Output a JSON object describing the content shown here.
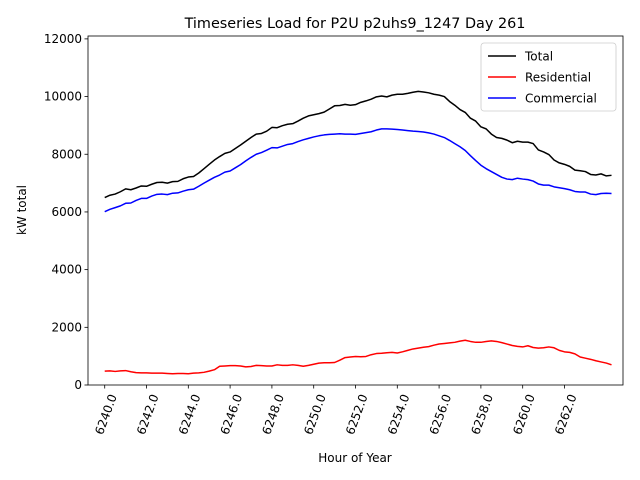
{
  "chart_data": {
    "type": "line",
    "title": "Timeseries Load for P2U p2uhs9_1247  Day 261",
    "xlabel": "Hour of Year",
    "ylabel": "kW total",
    "xlim": [
      6239.2,
      6264.8
    ],
    "ylim": [
      0,
      12100
    ],
    "xticks": [
      "6240.0",
      "6242.0",
      "6244.0",
      "6246.0",
      "6248.0",
      "6250.0",
      "6252.0",
      "6254.0",
      "6256.0",
      "6258.0",
      "6260.0",
      "6262.0"
    ],
    "xtick_values": [
      6240,
      6242,
      6244,
      6246,
      6248,
      6250,
      6252,
      6254,
      6256,
      6258,
      6260,
      6262
    ],
    "xtick_rotation": 70,
    "yticks": [
      "0",
      "2000",
      "4000",
      "6000",
      "8000",
      "10000",
      "12000"
    ],
    "ytick_values": [
      0,
      2000,
      4000,
      6000,
      8000,
      10000,
      12000
    ],
    "legend_position": "top-right",
    "grid": false,
    "x_start": 6240,
    "x_step": 0.25,
    "series": [
      {
        "name": "Total",
        "color": "#000000",
        "values": [
          6500,
          6580,
          6620,
          6700,
          6800,
          6770,
          6830,
          6900,
          6890,
          6960,
          7020,
          7030,
          7000,
          7050,
          7060,
          7150,
          7210,
          7230,
          7350,
          7500,
          7650,
          7800,
          7920,
          8030,
          8080,
          8200,
          8320,
          8450,
          8580,
          8700,
          8720,
          8800,
          8930,
          8920,
          8990,
          9040,
          9060,
          9150,
          9250,
          9330,
          9370,
          9410,
          9460,
          9570,
          9680,
          9690,
          9730,
          9700,
          9720,
          9800,
          9850,
          9910,
          9990,
          10020,
          9990,
          10050,
          10080,
          10080,
          10110,
          10150,
          10180,
          10160,
          10130,
          10080,
          10050,
          10000,
          9830,
          9700,
          9550,
          9450,
          9250,
          9150,
          8950,
          8880,
          8700,
          8580,
          8550,
          8490,
          8400,
          8450,
          8420,
          8420,
          8370,
          8150,
          8080,
          7990,
          7800,
          7700,
          7650,
          7580,
          7450,
          7430,
          7400,
          7300,
          7280,
          7320,
          7250,
          7270
        ]
      },
      {
        "name": "Residential",
        "color": "#ff0000",
        "values": [
          480,
          490,
          470,
          490,
          500,
          460,
          430,
          420,
          420,
          410,
          410,
          410,
          400,
          390,
          400,
          400,
          390,
          410,
          420,
          440,
          480,
          530,
          650,
          660,
          670,
          670,
          660,
          630,
          640,
          680,
          670,
          660,
          660,
          700,
          680,
          680,
          700,
          680,
          650,
          680,
          720,
          760,
          770,
          770,
          780,
          860,
          950,
          970,
          990,
          980,
          990,
          1050,
          1090,
          1100,
          1120,
          1130,
          1110,
          1150,
          1200,
          1250,
          1280,
          1310,
          1330,
          1380,
          1420,
          1440,
          1460,
          1480,
          1520,
          1550,
          1510,
          1480,
          1480,
          1510,
          1530,
          1510,
          1470,
          1420,
          1370,
          1340,
          1320,
          1360,
          1300,
          1280,
          1290,
          1320,
          1290,
          1200,
          1150,
          1130,
          1080,
          970,
          930,
          890,
          840,
          800,
          760,
          700
        ]
      },
      {
        "name": "Commercial",
        "color": "#0000ff",
        "values": [
          6010,
          6090,
          6150,
          6210,
          6300,
          6310,
          6400,
          6470,
          6470,
          6550,
          6610,
          6620,
          6600,
          6650,
          6660,
          6720,
          6770,
          6790,
          6890,
          7000,
          7100,
          7200,
          7280,
          7380,
          7420,
          7530,
          7640,
          7770,
          7890,
          8000,
          8060,
          8140,
          8230,
          8220,
          8280,
          8340,
          8370,
          8440,
          8500,
          8550,
          8600,
          8640,
          8670,
          8690,
          8700,
          8710,
          8700,
          8700,
          8690,
          8720,
          8750,
          8780,
          8840,
          8880,
          8880,
          8870,
          8860,
          8840,
          8820,
          8800,
          8790,
          8770,
          8740,
          8700,
          8640,
          8580,
          8480,
          8370,
          8260,
          8130,
          7950,
          7780,
          7620,
          7500,
          7400,
          7300,
          7200,
          7140,
          7120,
          7170,
          7140,
          7120,
          7070,
          6970,
          6930,
          6930,
          6870,
          6840,
          6810,
          6770,
          6710,
          6690,
          6690,
          6620,
          6600,
          6640,
          6650,
          6640
        ]
      }
    ]
  }
}
